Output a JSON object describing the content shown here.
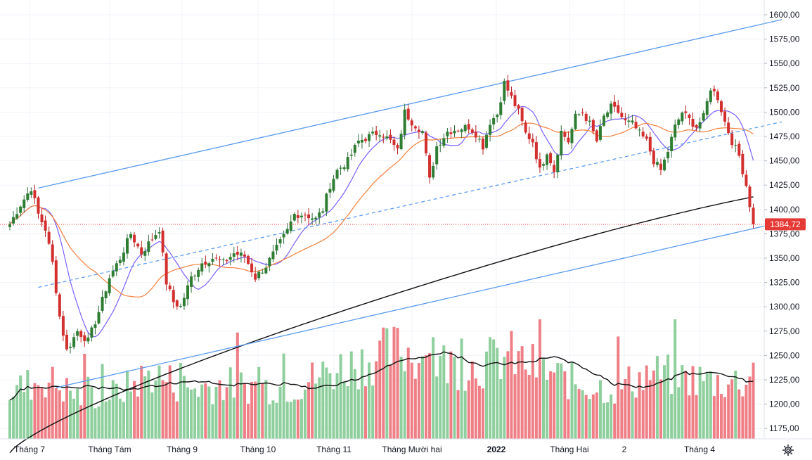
{
  "chart_data": {
    "type": "candlestick",
    "y_axis": {
      "ticks": [
        "1600,00",
        "1575,00",
        "1550,00",
        "1525,00",
        "1500,00",
        "1475,00",
        "1450,00",
        "1425,00",
        "1400,00",
        "1375,00",
        "1350,00",
        "1325,00",
        "1300,00",
        "1275,00",
        "1250,00",
        "1225,00",
        "1200,00",
        "1175,00"
      ],
      "range": [
        1160,
        1610
      ]
    },
    "x_axis": {
      "labels": [
        {
          "text": "Tháng 7",
          "bold": false
        },
        {
          "text": "Tháng Tám",
          "bold": false
        },
        {
          "text": "Tháng 9",
          "bold": false
        },
        {
          "text": "Tháng 10",
          "bold": false
        },
        {
          "text": "Tháng 11",
          "bold": false
        },
        {
          "text": "Tháng Mười hai",
          "bold": false
        },
        {
          "text": "2022",
          "bold": true
        },
        {
          "text": "Tháng Hai",
          "bold": false
        },
        {
          "text": "2",
          "bold": false
        },
        {
          "text": "Tháng 4",
          "bold": false
        }
      ]
    },
    "last_price": "1384,72",
    "close_anchors": [
      [
        0,
        1385
      ],
      [
        3,
        1405
      ],
      [
        6,
        1422
      ],
      [
        8,
        1395
      ],
      [
        10,
        1380
      ],
      [
        12,
        1345
      ],
      [
        14,
        1290
      ],
      [
        16,
        1255
      ],
      [
        19,
        1275
      ],
      [
        22,
        1265
      ],
      [
        25,
        1295
      ],
      [
        28,
        1330
      ],
      [
        31,
        1350
      ],
      [
        34,
        1375
      ],
      [
        37,
        1355
      ],
      [
        40,
        1370
      ],
      [
        42,
        1380
      ],
      [
        44,
        1325
      ],
      [
        46,
        1305
      ],
      [
        48,
        1300
      ],
      [
        51,
        1330
      ],
      [
        54,
        1345
      ],
      [
        57,
        1350
      ],
      [
        60,
        1345
      ],
      [
        63,
        1355
      ],
      [
        66,
        1352
      ],
      [
        69,
        1330
      ],
      [
        72,
        1342
      ],
      [
        75,
        1360
      ],
      [
        78,
        1378
      ],
      [
        80,
        1395
      ],
      [
        83,
        1395
      ],
      [
        86,
        1390
      ],
      [
        88,
        1400
      ],
      [
        90,
        1425
      ],
      [
        92,
        1440
      ],
      [
        95,
        1450
      ],
      [
        98,
        1470
      ],
      [
        101,
        1475
      ],
      [
        104,
        1480
      ],
      [
        107,
        1470
      ],
      [
        109,
        1460
      ],
      [
        111,
        1500
      ],
      [
        113,
        1490
      ],
      [
        116,
        1480
      ],
      [
        118,
        1430
      ],
      [
        120,
        1465
      ],
      [
        123,
        1480
      ],
      [
        126,
        1483
      ],
      [
        129,
        1485
      ],
      [
        131,
        1478
      ],
      [
        133,
        1465
      ],
      [
        135,
        1490
      ],
      [
        137,
        1498
      ],
      [
        139,
        1530
      ],
      [
        141,
        1515
      ],
      [
        143,
        1500
      ],
      [
        145,
        1478
      ],
      [
        147,
        1470
      ],
      [
        149,
        1440
      ],
      [
        151,
        1460
      ],
      [
        153,
        1440
      ],
      [
        155,
        1480
      ],
      [
        157,
        1470
      ],
      [
        159,
        1495
      ],
      [
        161,
        1500
      ],
      [
        163,
        1488
      ],
      [
        165,
        1470
      ],
      [
        167,
        1495
      ],
      [
        169,
        1505
      ],
      [
        171,
        1500
      ],
      [
        173,
        1490
      ],
      [
        175,
        1488
      ],
      [
        177,
        1478
      ],
      [
        179,
        1470
      ],
      [
        181,
        1450
      ],
      [
        183,
        1440
      ],
      [
        185,
        1460
      ],
      [
        187,
        1485
      ],
      [
        189,
        1500
      ],
      [
        191,
        1492
      ],
      [
        193,
        1485
      ],
      [
        195,
        1495
      ],
      [
        197,
        1525
      ],
      [
        199,
        1515
      ],
      [
        201,
        1490
      ],
      [
        203,
        1470
      ],
      [
        205,
        1455
      ],
      [
        207,
        1425
      ],
      [
        209,
        1385
      ]
    ],
    "n_candles": 210,
    "volume_anchors": [
      [
        0,
        44
      ],
      [
        10,
        55
      ],
      [
        20,
        38
      ],
      [
        30,
        42
      ],
      [
        40,
        60
      ],
      [
        50,
        46
      ],
      [
        60,
        50
      ],
      [
        70,
        48
      ],
      [
        80,
        48
      ],
      [
        90,
        62
      ],
      [
        100,
        72
      ],
      [
        110,
        82
      ],
      [
        120,
        70
      ],
      [
        130,
        66
      ],
      [
        140,
        76
      ],
      [
        150,
        62
      ],
      [
        160,
        50
      ],
      [
        170,
        46
      ],
      [
        180,
        60
      ],
      [
        190,
        56
      ],
      [
        200,
        52
      ],
      [
        209,
        54
      ]
    ],
    "series": [
      {
        "kind": "ma-short",
        "color": "#7b61ff"
      },
      {
        "kind": "ma-medium",
        "color": "#f57f3b"
      },
      {
        "kind": "ma-long",
        "color": "#111111"
      }
    ],
    "trend_lines": {
      "upper": {
        "from": [
          8,
          1422
        ],
        "to": [
          217,
          1595
        ]
      },
      "middle": {
        "from": [
          8,
          1320
        ],
        "to": [
          217,
          1490
        ]
      },
      "lower": {
        "from": [
          13,
          1217
        ],
        "to": [
          217,
          1387
        ]
      }
    },
    "colors": {
      "up": "#26a69a",
      "down": "#ef5350",
      "up_wick": "#2f6f3c",
      "down_wick": "#b71c1c",
      "channel": "#5b9bf0",
      "price_line": "#e53935"
    }
  },
  "ui": {
    "settings_icon": "gear-icon"
  }
}
